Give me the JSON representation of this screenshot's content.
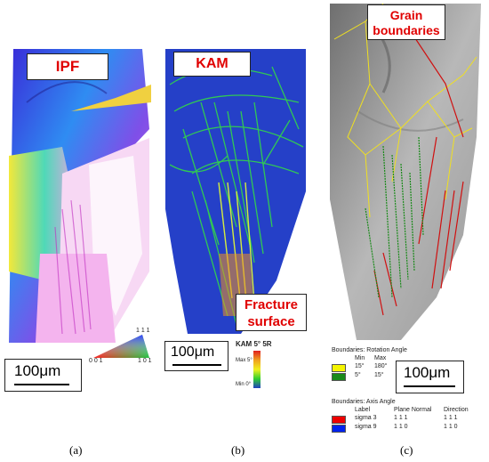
{
  "panels": {
    "a": {
      "tag": "IPF",
      "scale": "100μm",
      "caption": "(a)",
      "triangle": {
        "corner_top": "1 1 1",
        "corner_left": "0 0 1",
        "corner_right": "1 0 1"
      }
    },
    "b": {
      "tag": "KAM",
      "tag2": "Fracture surface",
      "scale": "100μm",
      "caption": "(b)",
      "kam_title": "KAM 5° 5R",
      "kam_max": "Max 5°",
      "kam_min": "Min 0°"
    },
    "c": {
      "tag": "Grain boundaries",
      "scale": "100μm",
      "caption": "(c)",
      "rotation": {
        "title": "Boundaries: Rotation Angle",
        "headers": [
          "Min",
          "Max"
        ],
        "rows": [
          {
            "min": "15°",
            "max": "180°",
            "color": "#f5f500"
          },
          {
            "min": "5°",
            "max": "15°",
            "color": "#1a8a1a"
          }
        ]
      },
      "axis": {
        "title": "Boundaries: Axis Angle",
        "headers": [
          "Label",
          "Plane Normal",
          "Direction"
        ],
        "rows": [
          {
            "label": "sigma 3",
            "normal": "1 1 1",
            "direction": "1 1 1",
            "color": "#ee0000"
          },
          {
            "label": "sigma 9",
            "normal": "1 1 0",
            "direction": "1 1 0",
            "color": "#0022ee"
          }
        ]
      }
    }
  }
}
